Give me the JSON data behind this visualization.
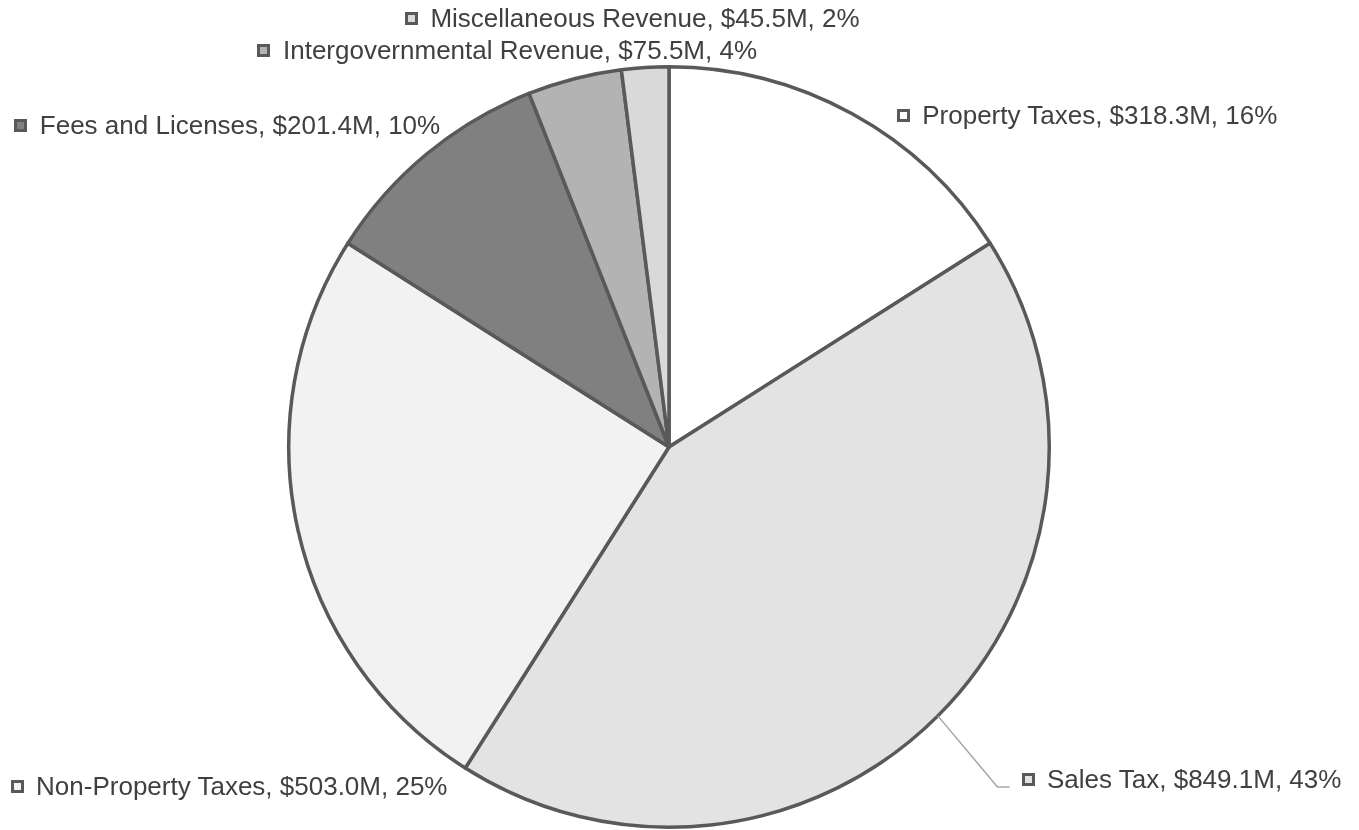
{
  "chart_data": {
    "type": "pie",
    "categories": [
      "Property Taxes",
      "Sales Tax",
      "Non-Property Taxes",
      "Fees and Licenses",
      "Intergovernmental Revenue",
      "Miscellaneous Revenue"
    ],
    "values": [
      16,
      43,
      25,
      10,
      4,
      2
    ],
    "colors": [
      "#ffffff",
      "#e3e3e3",
      "#f2f2f2",
      "#808080",
      "#b3b3b3",
      "#d9d9d9"
    ],
    "value_labels": [
      "$318.3M, 16%",
      "$849.1M, 43%",
      "$503.0M, 25%",
      "$201.4M, 10%",
      "$75.5M, 4%",
      "$45.5M, 2%"
    ],
    "legend": "top"
  }
}
